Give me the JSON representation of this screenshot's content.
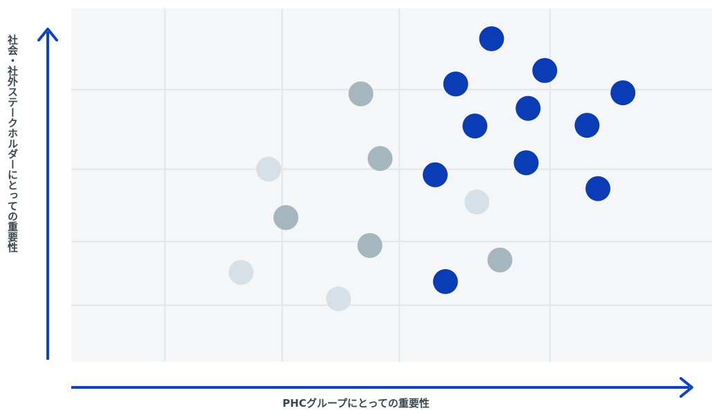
{
  "chart_data": {
    "type": "scatter",
    "title": "",
    "xlabel": "PHCグループにとっての重要性",
    "ylabel": "社会・社外ステークホルダーにとっての重要性",
    "xlim": [
      0,
      100
    ],
    "ylim": [
      0,
      100
    ],
    "xticks": [
      14.6,
      32.9,
      51.2,
      74.7
    ],
    "yticks": [
      16.0,
      34.0,
      54.5,
      77.0
    ],
    "tick_labels_shown": false,
    "grid": true,
    "legend": "none",
    "colors": {
      "high": "#0a3db5",
      "mid": "#a6b6bf",
      "low": "#d6e0e6",
      "plot_bg": "#f5f6f7",
      "grid": "#e1e6ea",
      "axis": "#0b44c4",
      "label": "#3a4750"
    },
    "series": [
      {
        "group": "high",
        "points": [
          {
            "x": 65.6,
            "y": 91.4
          },
          {
            "x": 73.9,
            "y": 82.4
          },
          {
            "x": 60.0,
            "y": 78.6
          },
          {
            "x": 86.1,
            "y": 76.1
          },
          {
            "x": 71.3,
            "y": 71.7
          },
          {
            "x": 63.0,
            "y": 66.7
          },
          {
            "x": 80.5,
            "y": 66.9
          },
          {
            "x": 71.0,
            "y": 56.3
          },
          {
            "x": 56.8,
            "y": 52.9
          },
          {
            "x": 82.2,
            "y": 49.0
          },
          {
            "x": 58.4,
            "y": 22.7
          }
        ]
      },
      {
        "group": "mid",
        "points": [
          {
            "x": 45.2,
            "y": 75.8
          },
          {
            "x": 48.2,
            "y": 57.5
          },
          {
            "x": 33.5,
            "y": 40.8
          },
          {
            "x": 46.6,
            "y": 32.9
          },
          {
            "x": 66.9,
            "y": 28.8
          }
        ]
      },
      {
        "group": "low",
        "points": [
          {
            "x": 30.8,
            "y": 54.5
          },
          {
            "x": 63.3,
            "y": 45.2
          },
          {
            "x": 26.5,
            "y": 25.3
          },
          {
            "x": 41.7,
            "y": 17.8
          }
        ]
      }
    ]
  }
}
